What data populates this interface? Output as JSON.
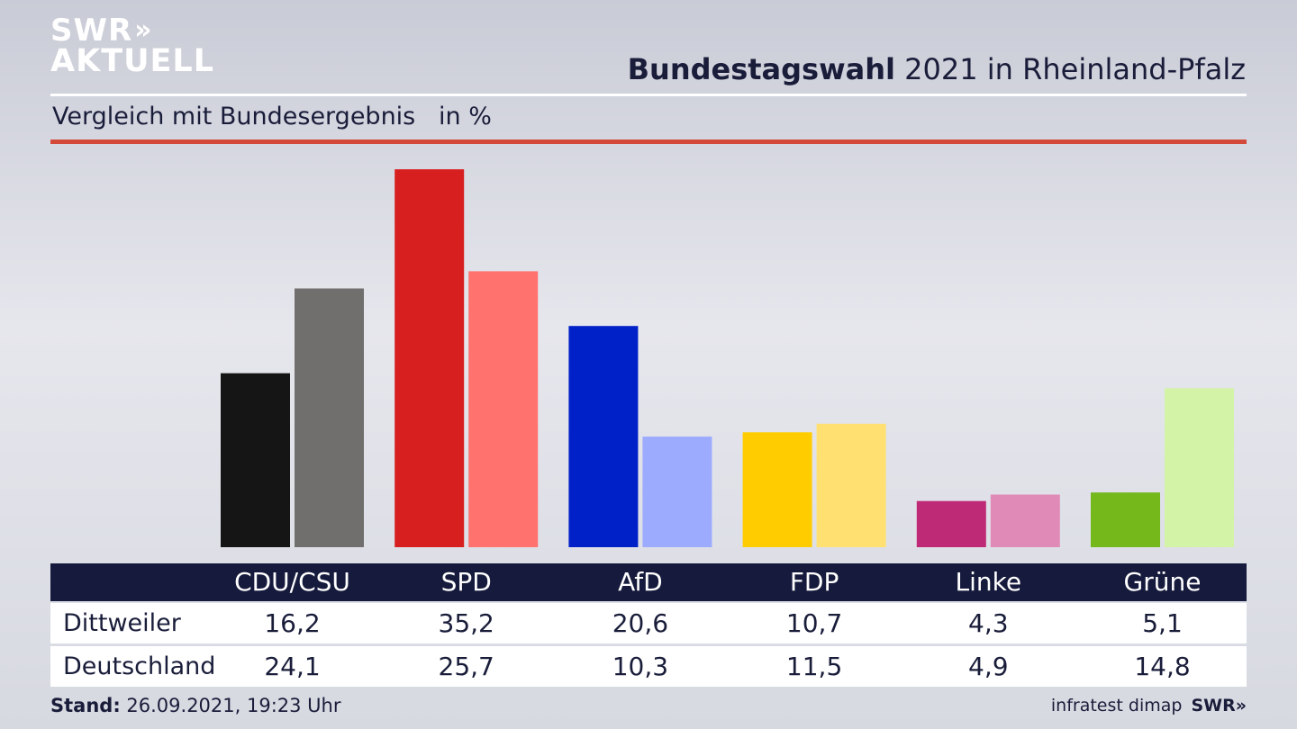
{
  "logo": {
    "line1": "SWR",
    "arrows": "»",
    "line2": "AKTUELL"
  },
  "header": {
    "title_bold": "Bundestagswahl",
    "title_rest": " 2021 in Rheinland-Pfalz"
  },
  "subtitle": "Vergleich mit Bundesergebnis   in %",
  "chart_data": {
    "type": "bar",
    "title": "Bundestagswahl 2021 in Rheinland-Pfalz",
    "subtitle": "Vergleich mit Bundesergebnis   in %",
    "categories": [
      "CDU/CSU",
      "SPD",
      "AfD",
      "FDP",
      "Linke",
      "Grüne"
    ],
    "series": [
      {
        "name": "Dittweiler",
        "values": [
          16.2,
          35.2,
          20.6,
          10.7,
          4.3,
          5.1
        ],
        "colors": [
          "#151515",
          "#d71f1f",
          "#0020c8",
          "#ffcc00",
          "#be2a76",
          "#74b81c"
        ]
      },
      {
        "name": "Deutschland",
        "values": [
          24.1,
          25.7,
          10.3,
          11.5,
          4.9,
          14.8
        ],
        "colors": [
          "#716f6d",
          "#ff726e",
          "#9dabff",
          "#ffe070",
          "#e08ab8",
          "#d3f4a6"
        ]
      }
    ],
    "value_labels": {
      "Dittweiler": [
        "16,2",
        "35,2",
        "20,6",
        "10,7",
        "4,3",
        "5,1"
      ],
      "Deutschland": [
        "24,1",
        "25,7",
        "10,3",
        "11,5",
        "4,9",
        "14,8"
      ]
    },
    "grid": false,
    "legend": "none"
  },
  "footer": {
    "stand_label": "Stand:",
    "stand_value": " 26.09.2021, 19:23 Uhr",
    "source": "infratest dimap",
    "brand": "SWR",
    "brand_arrows": "»"
  }
}
